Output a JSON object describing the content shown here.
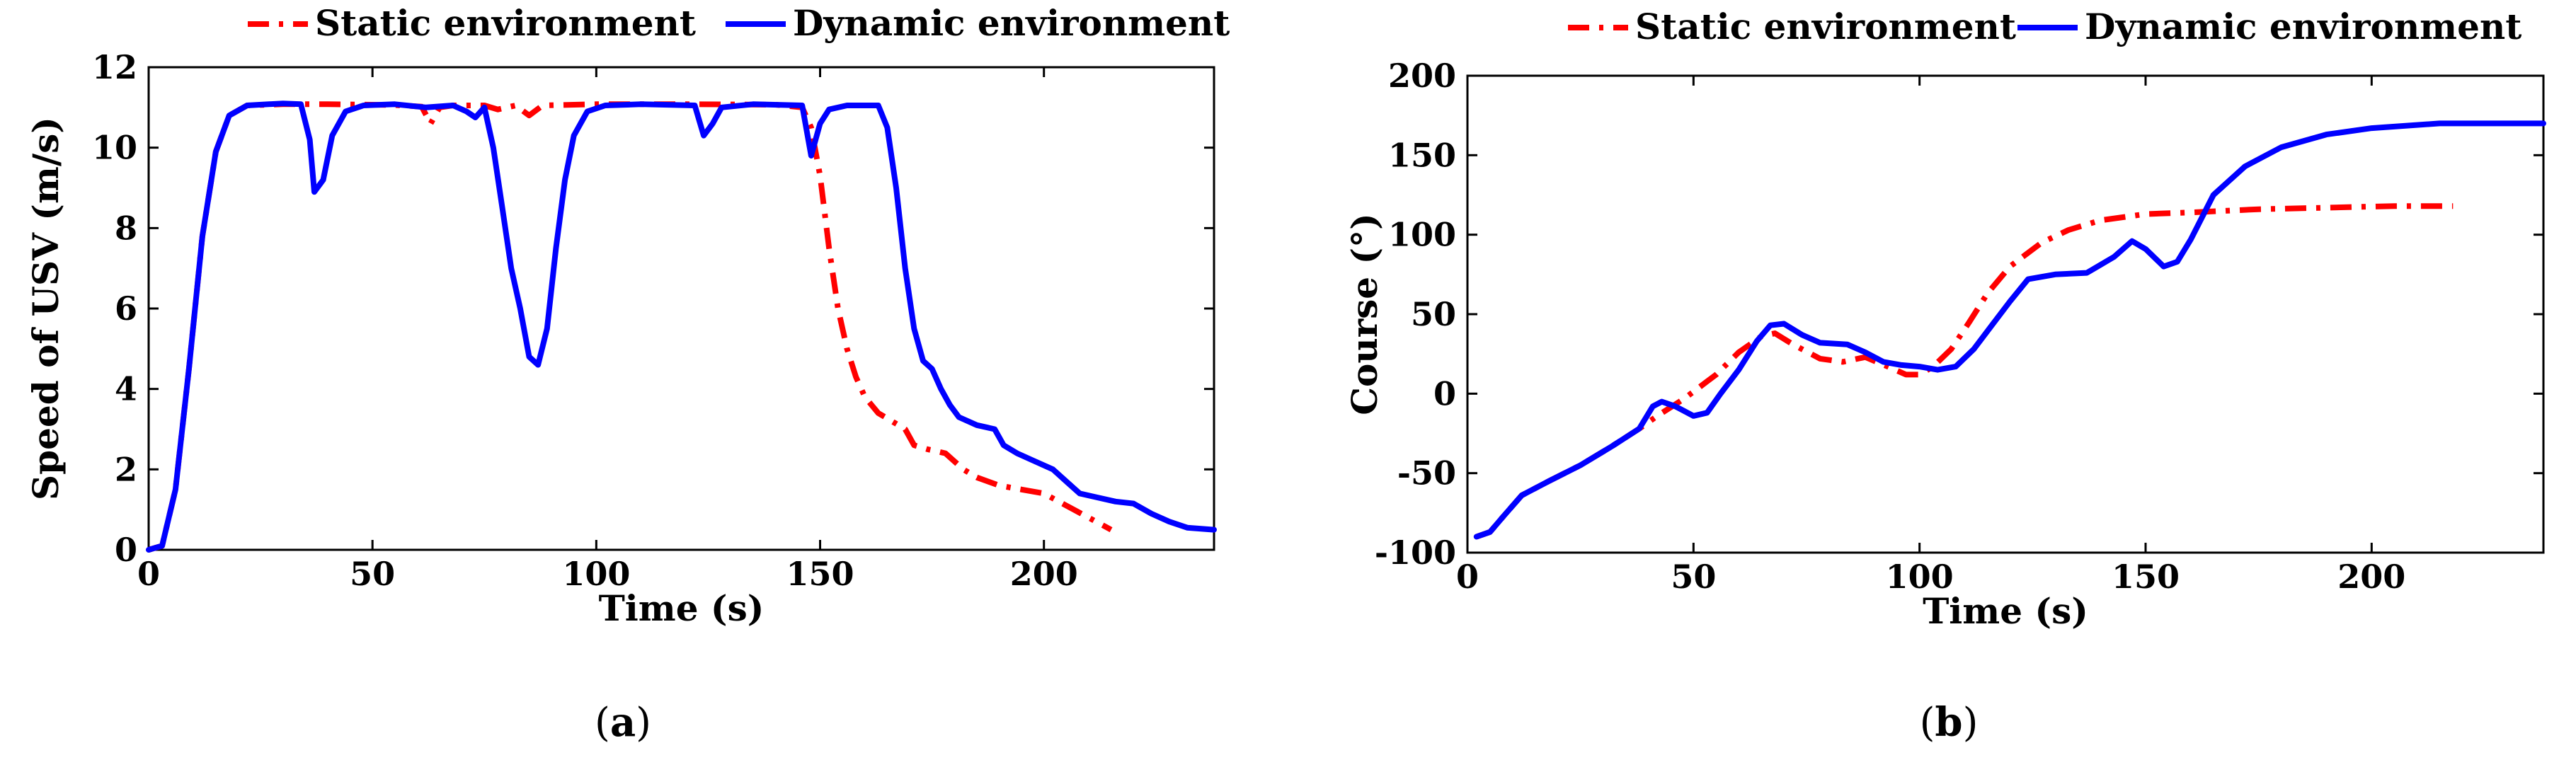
{
  "chart_data": [
    {
      "type": "line",
      "title": "",
      "xlabel": "Time (s)",
      "ylabel": "Speed of USV (m/s)",
      "xlim": [
        0,
        238
      ],
      "ylim": [
        0,
        12
      ],
      "xticks": [
        0,
        50,
        100,
        150,
        200
      ],
      "xtick_labels": [
        "0",
        "50",
        "100",
        "150",
        "200"
      ],
      "yticks": [
        0,
        2,
        4,
        6,
        8,
        10,
        12
      ],
      "ytick_labels": [
        "0",
        "2",
        "4",
        "6",
        "8",
        "10",
        "12"
      ],
      "grid": false,
      "legend": "top",
      "caption_letter": "a",
      "series": [
        {
          "name": "Static environment",
          "color": "#ff0000",
          "style": "dashed",
          "points": [
            [
              0,
              0
            ],
            [
              3,
              0.1
            ],
            [
              6,
              1.5
            ],
            [
              9,
              4.5
            ],
            [
              12,
              7.8
            ],
            [
              15,
              9.9
            ],
            [
              18,
              10.8
            ],
            [
              22,
              11.05
            ],
            [
              30,
              11.08
            ],
            [
              40,
              11.08
            ],
            [
              55,
              11.06
            ],
            [
              61,
              11.02
            ],
            [
              63,
              10.6
            ],
            [
              65,
              11.0
            ],
            [
              68,
              11.05
            ],
            [
              75,
              11.05
            ],
            [
              78,
              10.95
            ],
            [
              82,
              11.05
            ],
            [
              85,
              10.8
            ],
            [
              88,
              11.05
            ],
            [
              100,
              11.08
            ],
            [
              120,
              11.08
            ],
            [
              140,
              11.07
            ],
            [
              146,
              11.0
            ],
            [
              148,
              10.5
            ],
            [
              150,
              9.3
            ],
            [
              152,
              7.5
            ],
            [
              154,
              6.0
            ],
            [
              156,
              5.0
            ],
            [
              158,
              4.3
            ],
            [
              160,
              3.8
            ],
            [
              163,
              3.4
            ],
            [
              166,
              3.2
            ],
            [
              169,
              3.0
            ],
            [
              171,
              2.6
            ],
            [
              174,
              2.5
            ],
            [
              178,
              2.4
            ],
            [
              182,
              2.0
            ],
            [
              185,
              1.8
            ],
            [
              190,
              1.6
            ],
            [
              195,
              1.5
            ],
            [
              200,
              1.4
            ],
            [
              205,
              1.1
            ],
            [
              210,
              0.8
            ],
            [
              215,
              0.5
            ]
          ]
        },
        {
          "name": "Dynamic environment",
          "color": "#0000ff",
          "style": "solid",
          "points": [
            [
              0,
              0
            ],
            [
              3,
              0.1
            ],
            [
              6,
              1.5
            ],
            [
              9,
              4.5
            ],
            [
              12,
              7.8
            ],
            [
              15,
              9.9
            ],
            [
              18,
              10.8
            ],
            [
              22,
              11.05
            ],
            [
              30,
              11.1
            ],
            [
              34,
              11.08
            ],
            [
              36,
              10.2
            ],
            [
              37,
              8.9
            ],
            [
              39,
              9.2
            ],
            [
              41,
              10.3
            ],
            [
              44,
              10.9
            ],
            [
              48,
              11.05
            ],
            [
              55,
              11.08
            ],
            [
              62,
              11.0
            ],
            [
              68,
              11.05
            ],
            [
              71,
              10.9
            ],
            [
              73,
              10.75
            ],
            [
              75,
              11.0
            ],
            [
              77,
              10.0
            ],
            [
              79,
              8.5
            ],
            [
              81,
              7.0
            ],
            [
              83,
              6.0
            ],
            [
              85,
              4.8
            ],
            [
              87,
              4.6
            ],
            [
              89,
              5.5
            ],
            [
              91,
              7.5
            ],
            [
              93,
              9.2
            ],
            [
              95,
              10.3
            ],
            [
              98,
              10.9
            ],
            [
              102,
              11.05
            ],
            [
              110,
              11.08
            ],
            [
              122,
              11.05
            ],
            [
              124,
              10.3
            ],
            [
              126,
              10.6
            ],
            [
              128,
              11.0
            ],
            [
              135,
              11.08
            ],
            [
              146,
              11.05
            ],
            [
              148,
              9.8
            ],
            [
              150,
              10.6
            ],
            [
              152,
              10.95
            ],
            [
              156,
              11.05
            ],
            [
              163,
              11.05
            ],
            [
              165,
              10.5
            ],
            [
              167,
              9.0
            ],
            [
              169,
              7.0
            ],
            [
              171,
              5.5
            ],
            [
              173,
              4.7
            ],
            [
              175,
              4.5
            ],
            [
              177,
              4.0
            ],
            [
              179,
              3.6
            ],
            [
              181,
              3.3
            ],
            [
              185,
              3.1
            ],
            [
              189,
              3.0
            ],
            [
              191,
              2.6
            ],
            [
              194,
              2.4
            ],
            [
              198,
              2.2
            ],
            [
              202,
              2.0
            ],
            [
              205,
              1.7
            ],
            [
              208,
              1.4
            ],
            [
              212,
              1.3
            ],
            [
              216,
              1.2
            ],
            [
              220,
              1.15
            ],
            [
              224,
              0.9
            ],
            [
              228,
              0.7
            ],
            [
              232,
              0.55
            ],
            [
              238,
              0.5
            ]
          ]
        }
      ]
    },
    {
      "type": "line",
      "title": "",
      "xlabel": "Time (s)",
      "ylabel": "Course (°)",
      "xlim": [
        0,
        238
      ],
      "ylim": [
        -100,
        200
      ],
      "xticks": [
        0,
        50,
        100,
        150,
        200
      ],
      "xtick_labels": [
        "0",
        "50",
        "100",
        "150",
        "200"
      ],
      "yticks": [
        -100,
        -50,
        0,
        50,
        100,
        150,
        200
      ],
      "ytick_labels": [
        "-100",
        "-50",
        "0",
        "50",
        "100",
        "150",
        "200"
      ],
      "grid": false,
      "legend": "top",
      "caption_letter": "b",
      "series": [
        {
          "name": "Static environment",
          "color": "#ff0000",
          "style": "dashed",
          "points": [
            [
              2,
              -90
            ],
            [
              5,
              -87
            ],
            [
              8,
              -77
            ],
            [
              12,
              -64
            ],
            [
              18,
              -55
            ],
            [
              25,
              -45
            ],
            [
              32,
              -33
            ],
            [
              38,
              -22
            ],
            [
              42,
              -14
            ],
            [
              48,
              -3
            ],
            [
              55,
              12
            ],
            [
              60,
              26
            ],
            [
              65,
              36
            ],
            [
              68,
              38
            ],
            [
              72,
              31
            ],
            [
              78,
              22
            ],
            [
              83,
              20
            ],
            [
              88,
              23
            ],
            [
              93,
              17
            ],
            [
              97,
              12
            ],
            [
              100,
              12
            ],
            [
              103,
              17
            ],
            [
              107,
              28
            ],
            [
              111,
              45
            ],
            [
              115,
              63
            ],
            [
              120,
              80
            ],
            [
              127,
              95
            ],
            [
              133,
              103
            ],
            [
              140,
              109
            ],
            [
              150,
              113
            ],
            [
              160,
              114
            ],
            [
              175,
              116
            ],
            [
              190,
              117
            ],
            [
              205,
              118
            ],
            [
              218,
              118
            ]
          ]
        },
        {
          "name": "Dynamic environment",
          "color": "#0000ff",
          "style": "solid",
          "points": [
            [
              2,
              -90
            ],
            [
              5,
              -87
            ],
            [
              8,
              -77
            ],
            [
              12,
              -64
            ],
            [
              18,
              -55
            ],
            [
              25,
              -45
            ],
            [
              32,
              -33
            ],
            [
              38,
              -22
            ],
            [
              41,
              -8
            ],
            [
              43,
              -5
            ],
            [
              46,
              -8
            ],
            [
              50,
              -14
            ],
            [
              53,
              -12
            ],
            [
              56,
              0
            ],
            [
              60,
              15
            ],
            [
              64,
              33
            ],
            [
              67,
              43
            ],
            [
              70,
              44
            ],
            [
              74,
              37
            ],
            [
              78,
              32
            ],
            [
              84,
              31
            ],
            [
              88,
              26
            ],
            [
              92,
              20
            ],
            [
              96,
              18
            ],
            [
              100,
              17
            ],
            [
              104,
              15
            ],
            [
              108,
              17
            ],
            [
              112,
              28
            ],
            [
              116,
              43
            ],
            [
              120,
              58
            ],
            [
              124,
              72
            ],
            [
              130,
              75
            ],
            [
              137,
              76
            ],
            [
              143,
              86
            ],
            [
              147,
              96
            ],
            [
              150,
              91
            ],
            [
              154,
              80
            ],
            [
              157,
              83
            ],
            [
              160,
              97
            ],
            [
              165,
              125
            ],
            [
              172,
              143
            ],
            [
              180,
              155
            ],
            [
              190,
              163
            ],
            [
              200,
              167
            ],
            [
              215,
              170
            ],
            [
              238,
              170
            ]
          ]
        }
      ]
    }
  ]
}
